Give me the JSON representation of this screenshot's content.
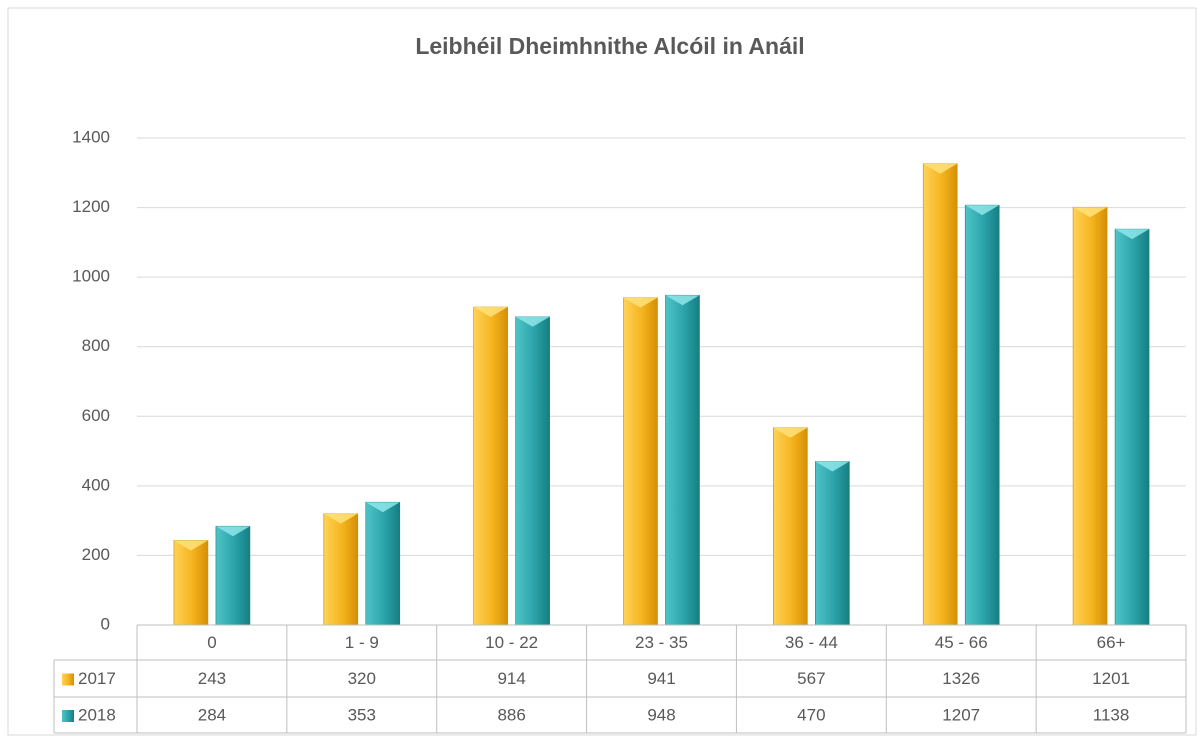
{
  "chart_data": {
    "type": "bar",
    "title": "Leibhéil Dheimhnithe Alcóil in Anáil",
    "categories": [
      "0",
      "1 - 9",
      "10 - 22",
      "23 - 35",
      "36 - 44",
      "45 - 66",
      "66+"
    ],
    "series": [
      {
        "name": "2017",
        "color": "#f2b11c",
        "values": [
          243,
          320,
          914,
          941,
          567,
          1326,
          1201
        ]
      },
      {
        "name": "2018",
        "color": "#2aa3a8",
        "values": [
          284,
          353,
          886,
          948,
          470,
          1207,
          1138
        ]
      }
    ],
    "ylim": [
      0,
      1400
    ],
    "yticks": [
      0,
      200,
      400,
      600,
      800,
      1000,
      1200,
      1400
    ],
    "grid": true,
    "data_table": true
  }
}
